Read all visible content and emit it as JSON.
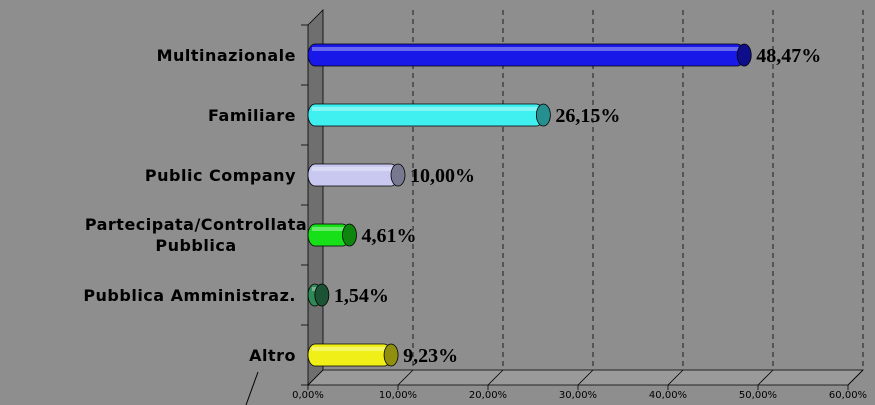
{
  "chart_data": {
    "type": "bar",
    "categories": [
      "Multinazionale",
      "Familiare",
      "Public Company",
      "Partecipata/Controllata Pubblica",
      "Pubblica Amministraz.",
      "Altro"
    ],
    "values": [
      48.47,
      26.15,
      10.0,
      4.61,
      1.54,
      9.23
    ],
    "value_labels": [
      "48,47%",
      "26,15%",
      "10,00%",
      "4,61%",
      "1,54%",
      "9,23%"
    ],
    "colors": [
      "#1818e8",
      "#40f0f0",
      "#c8c8f0",
      "#18e018",
      "#2e8b57",
      "#f0f018"
    ],
    "xlim": [
      0,
      60
    ],
    "xticks": [
      {
        "value": 0,
        "label": "0,00%"
      },
      {
        "value": 10,
        "label": "10,00%"
      },
      {
        "value": 20,
        "label": "20,00%"
      },
      {
        "value": 30,
        "label": "30,00%"
      },
      {
        "value": 40,
        "label": "40,00%"
      },
      {
        "value": 50,
        "label": "50,00%"
      },
      {
        "value": 60,
        "label": "60,00%"
      }
    ],
    "grid": true
  }
}
